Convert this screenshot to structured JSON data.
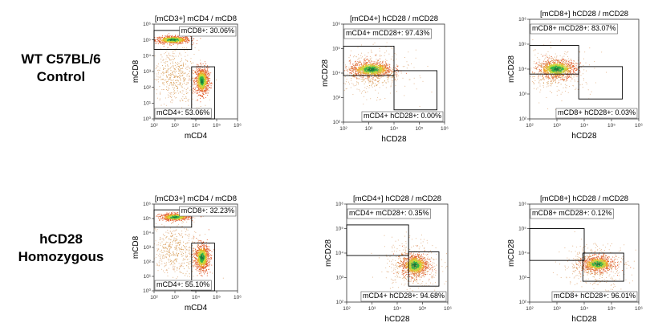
{
  "rows": [
    {
      "line1": "WT C57BL/6",
      "line2": "Control"
    },
    {
      "line1": "hCD28",
      "line2": "Homozygous"
    }
  ],
  "chart_data": [
    {
      "type": "scatter",
      "subtype": "flow-cytometry-density",
      "title": "[mCD3+] mCD4 / mCD8",
      "xlabel": "mCD4",
      "ylabel": "mCD8",
      "scale": "log10",
      "xlim": [
        2,
        6
      ],
      "ylim": [
        0,
        6
      ],
      "x_ticks": [
        "10²",
        "10³",
        "10⁴",
        "10⁵",
        "10⁶"
      ],
      "y_ticks": [
        "10⁰",
        "10¹",
        "10²",
        "10³",
        "10⁴",
        "10⁵",
        "10⁶"
      ],
      "gates": [
        {
          "label": "mCD8+: 30.06%",
          "name": "mCD8+",
          "percent": 30.06,
          "x": [
            2,
            3.8
          ],
          "y": [
            4.4,
            5.6
          ],
          "label_pos": "top-right"
        },
        {
          "label": "mCD4+: 53.06%",
          "name": "mCD4+",
          "percent": 53.06,
          "x": [
            3.8,
            4.9
          ],
          "y": [
            0,
            3.3
          ],
          "label_pos": "bottom-left"
        }
      ],
      "populations": [
        {
          "cx": 2.9,
          "cy": 5.0,
          "sx": 0.42,
          "sy": 0.12,
          "n": 700,
          "core": true
        },
        {
          "cx": 4.3,
          "cy": 2.4,
          "sx": 0.16,
          "sy": 0.42,
          "n": 900,
          "core": true
        },
        {
          "cx": 2.9,
          "cy": 2.8,
          "sx": 0.55,
          "sy": 0.9,
          "n": 350,
          "core": false
        },
        {
          "cx": 3.4,
          "cy": 2.5,
          "sx": 0.6,
          "sy": 1.2,
          "n": 150,
          "core": false
        }
      ]
    },
    {
      "type": "scatter",
      "subtype": "flow-cytometry-density",
      "title": "[mCD4+] hCD28 / mCD28",
      "xlabel": "hCD28",
      "ylabel": "mCD28",
      "scale": "log10",
      "xlim": [
        2,
        6
      ],
      "ylim": [
        2,
        6
      ],
      "x_ticks": [
        "10²",
        "10³",
        "10⁴",
        "10⁵",
        "10⁶"
      ],
      "y_ticks": [
        "10²",
        "10³",
        "10⁴",
        "10⁵",
        "10⁶"
      ],
      "gates": [
        {
          "label": "mCD4+ mCD28+: 97.43%",
          "name": "mCD4+ mCD28+",
          "percent": 97.43,
          "x": [
            2,
            4
          ],
          "y": [
            3.9,
            5.1
          ],
          "label_pos": "top-left"
        },
        {
          "label": "mCD4+ hCD28+: 0.00%",
          "name": "mCD4+ hCD28+",
          "percent": 0.0,
          "x": [
            4,
            5.7
          ],
          "y": [
            2.5,
            4.1
          ],
          "label_pos": "bottom-right"
        }
      ],
      "populations": [
        {
          "cx": 3.1,
          "cy": 4.15,
          "sx": 0.42,
          "sy": 0.16,
          "n": 900,
          "core": true
        },
        {
          "cx": 3.1,
          "cy": 4.0,
          "sx": 0.75,
          "sy": 0.45,
          "n": 450,
          "core": false
        }
      ]
    },
    {
      "type": "scatter",
      "subtype": "flow-cytometry-density",
      "title": "[mCD8+] hCD28 / mCD28",
      "xlabel": "hCD28",
      "ylabel": "mCD28",
      "scale": "log10",
      "xlim": [
        2,
        6
      ],
      "ylim": [
        2,
        6
      ],
      "x_ticks": [
        "10²",
        "10³",
        "10⁴",
        "10⁵",
        "10⁶"
      ],
      "y_ticks": [
        "10²",
        "10³",
        "10⁴",
        "10⁵",
        "10⁶"
      ],
      "gates": [
        {
          "label": "mCD8+ mCD28+: 83.07%",
          "name": "mCD8+ mCD28+",
          "percent": 83.07,
          "x": [
            2,
            3.8
          ],
          "y": [
            3.8,
            4.95
          ],
          "label_pos": "top-left"
        },
        {
          "label": "mCD8+ hCD28+: 0.03%",
          "name": "mCD8+ hCD28+",
          "percent": 0.03,
          "x": [
            3.8,
            5.4
          ],
          "y": [
            2.8,
            4.1
          ],
          "label_pos": "bottom-right"
        }
      ],
      "populations": [
        {
          "cx": 3.0,
          "cy": 4.0,
          "sx": 0.35,
          "sy": 0.18,
          "n": 800,
          "core": true
        },
        {
          "cx": 2.9,
          "cy": 3.9,
          "sx": 0.7,
          "sy": 0.45,
          "n": 400,
          "core": false
        }
      ]
    },
    {
      "type": "scatter",
      "subtype": "flow-cytometry-density",
      "title": "[mCD3+] mCD4 / mCD8",
      "xlabel": "mCD4",
      "ylabel": "mCD8",
      "scale": "log10",
      "xlim": [
        2,
        6
      ],
      "ylim": [
        0,
        6
      ],
      "x_ticks": [
        "10²",
        "10³",
        "10⁴",
        "10⁵",
        "10⁶"
      ],
      "y_ticks": [
        "10⁰",
        "10¹",
        "10²",
        "10³",
        "10⁴",
        "10⁵",
        "10⁶"
      ],
      "gates": [
        {
          "label": "mCD8+: 32.23%",
          "name": "mCD8+",
          "percent": 32.23,
          "x": [
            2,
            3.8
          ],
          "y": [
            4.4,
            5.6
          ],
          "label_pos": "top-right"
        },
        {
          "label": "mCD4+: 55.10%",
          "name": "mCD4+",
          "percent": 55.1,
          "x": [
            3.8,
            4.9
          ],
          "y": [
            0,
            3.3
          ],
          "label_pos": "bottom-left"
        }
      ],
      "populations": [
        {
          "cx": 3.0,
          "cy": 5.1,
          "sx": 0.35,
          "sy": 0.12,
          "n": 650,
          "core": true
        },
        {
          "cx": 4.3,
          "cy": 2.3,
          "sx": 0.17,
          "sy": 0.45,
          "n": 900,
          "core": true
        },
        {
          "cx": 2.9,
          "cy": 2.9,
          "sx": 0.55,
          "sy": 0.9,
          "n": 350,
          "core": false
        },
        {
          "cx": 3.5,
          "cy": 2.5,
          "sx": 0.6,
          "sy": 1.2,
          "n": 150,
          "core": false
        }
      ]
    },
    {
      "type": "scatter",
      "subtype": "flow-cytometry-density",
      "title": "[mCD4+] hCD28 / mCD28",
      "xlabel": "hCD28",
      "ylabel": "mCD28",
      "scale": "log10",
      "xlim": [
        2,
        6
      ],
      "ylim": [
        2,
        6
      ],
      "x_ticks": [
        "10²",
        "10³",
        "10⁴",
        "10⁵",
        "10⁶"
      ],
      "y_ticks": [
        "10²",
        "10³",
        "10⁴",
        "10⁵",
        "10⁶"
      ],
      "gates": [
        {
          "label": "mCD4+ mCD28+: 0.35%",
          "name": "mCD4+ mCD28+",
          "percent": 0.35,
          "x": [
            2,
            4.45
          ],
          "y": [
            3.9,
            5.15
          ],
          "label_pos": "top-left"
        },
        {
          "label": "mCD4+ hCD28+: 94.68%",
          "name": "mCD4+ hCD28+",
          "percent": 94.68,
          "x": [
            4.45,
            5.65
          ],
          "y": [
            2.65,
            4.05
          ],
          "label_pos": "bottom-right"
        }
      ],
      "populations": [
        {
          "cx": 4.7,
          "cy": 3.5,
          "sx": 0.25,
          "sy": 0.22,
          "n": 900,
          "core": true
        },
        {
          "cx": 4.6,
          "cy": 3.5,
          "sx": 0.55,
          "sy": 0.55,
          "n": 400,
          "core": false
        }
      ]
    },
    {
      "type": "scatter",
      "subtype": "flow-cytometry-density",
      "title": "[mCD8+] hCD28 / mCD28",
      "xlabel": "hCD28",
      "ylabel": "mCD28",
      "scale": "log10",
      "xlim": [
        2,
        6
      ],
      "ylim": [
        2,
        6
      ],
      "x_ticks": [
        "10²",
        "10³",
        "10⁴",
        "10⁵",
        "10⁶"
      ],
      "y_ticks": [
        "10²",
        "10³",
        "10⁴",
        "10⁵",
        "10⁶"
      ],
      "gates": [
        {
          "label": "mCD8+ mCD28+: 0.12%",
          "name": "mCD8+ mCD28+",
          "percent": 0.12,
          "x": [
            2,
            4
          ],
          "y": [
            3.7,
            5.0
          ],
          "label_pos": "top-left"
        },
        {
          "label": "mCD8+ hCD28+: 96.01%",
          "name": "mCD8+ hCD28+",
          "percent": 96.01,
          "x": [
            3.95,
            5.45
          ],
          "y": [
            2.85,
            4.0
          ],
          "label_pos": "bottom-right"
        }
      ],
      "populations": [
        {
          "cx": 4.5,
          "cy": 3.55,
          "sx": 0.28,
          "sy": 0.15,
          "n": 850,
          "core": true
        },
        {
          "cx": 4.4,
          "cy": 3.5,
          "sx": 0.6,
          "sy": 0.45,
          "n": 400,
          "core": false
        }
      ]
    }
  ]
}
